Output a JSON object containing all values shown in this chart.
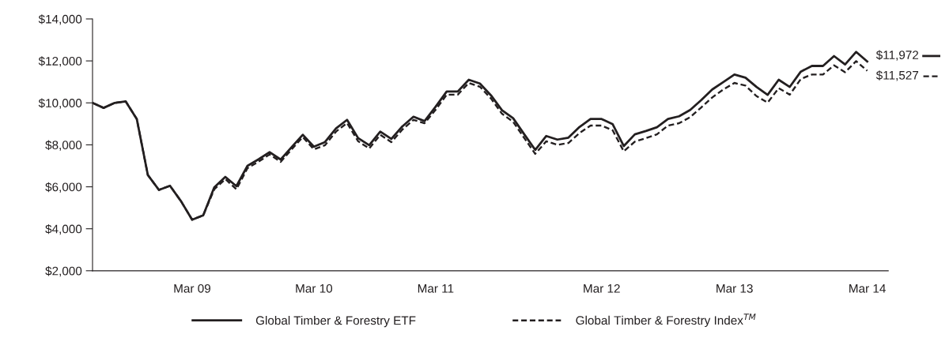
{
  "chart_data": {
    "type": "line",
    "categories": [
      null,
      null,
      null,
      null,
      null,
      null,
      null,
      null,
      null,
      "Mar 09",
      null,
      null,
      null,
      null,
      null,
      null,
      null,
      null,
      null,
      null,
      "Mar 10",
      null,
      null,
      null,
      null,
      null,
      null,
      null,
      null,
      null,
      null,
      "Mar 11",
      null,
      null,
      null,
      null,
      null,
      null,
      null,
      null,
      null,
      null,
      null,
      null,
      null,
      null,
      "Mar 12",
      null,
      null,
      null,
      null,
      null,
      null,
      null,
      null,
      null,
      null,
      null,
      "Mar 13",
      null,
      null,
      null,
      null,
      null,
      null,
      null,
      null,
      null,
      null,
      null,
      "Mar 14"
    ],
    "series": [
      {
        "name": "Global Timber & Forestry ETF",
        "color": "#231f20",
        "line_style": "solid",
        "values": [
          10000,
          9760,
          10000,
          10070,
          9230,
          6560,
          5850,
          6050,
          5310,
          4430,
          4640,
          5970,
          6470,
          6030,
          7000,
          7310,
          7650,
          7300,
          7900,
          8480,
          7910,
          8130,
          8780,
          9190,
          8320,
          7980,
          8630,
          8280,
          8880,
          9340,
          9130,
          9820,
          10540,
          10540,
          11100,
          10920,
          10360,
          9650,
          9270,
          8510,
          7760,
          8420,
          8250,
          8340,
          8850,
          9230,
          9230,
          8980,
          7940,
          8500,
          8660,
          8840,
          9230,
          9360,
          9660,
          10130,
          10640,
          10990,
          11350,
          11200,
          10760,
          10380,
          11100,
          10760,
          11490,
          11760,
          11760,
          12230,
          11830,
          12430,
          11972
        ]
      },
      {
        "name": "Global Timber & Forestry Index$^{TM}$",
        "color": "#231f20",
        "line_style": "dashed",
        "values": [
          10000,
          9760,
          10000,
          10070,
          9230,
          6560,
          5850,
          6050,
          5310,
          4430,
          4640,
          5880,
          6370,
          5880,
          6890,
          7200,
          7540,
          7190,
          7790,
          8370,
          7780,
          7980,
          8630,
          9040,
          8170,
          7830,
          8480,
          8130,
          8730,
          9190,
          9030,
          9670,
          10390,
          10390,
          10950,
          10770,
          10210,
          9480,
          9100,
          8330,
          7570,
          8170,
          8000,
          8090,
          8560,
          8920,
          8920,
          8690,
          7690,
          8150,
          8320,
          8500,
          8920,
          9030,
          9320,
          9780,
          10260,
          10640,
          10950,
          10820,
          10320,
          10010,
          10700,
          10390,
          11140,
          11350,
          11350,
          11790,
          11460,
          11990,
          11527
        ]
      }
    ],
    "ylim": [
      2000,
      14000
    ],
    "yticks": [
      {
        "value": 2000,
        "label": "$2,000"
      },
      {
        "value": 4000,
        "label": "$4,000"
      },
      {
        "value": 6000,
        "label": "$6,000"
      },
      {
        "value": 8000,
        "label": "$8,000"
      },
      {
        "value": 10000,
        "label": "$10,000"
      },
      {
        "value": 12000,
        "label": "$12,000"
      },
      {
        "value": 14000,
        "label": "$14,000"
      }
    ],
    "annotations": [
      {
        "text": "$11,972",
        "x": "Mar 14",
        "y": 11972
      },
      {
        "text": "$11,527",
        "x": "Mar 14",
        "y": 11527
      }
    ],
    "grid": false,
    "legend": "bottom"
  }
}
